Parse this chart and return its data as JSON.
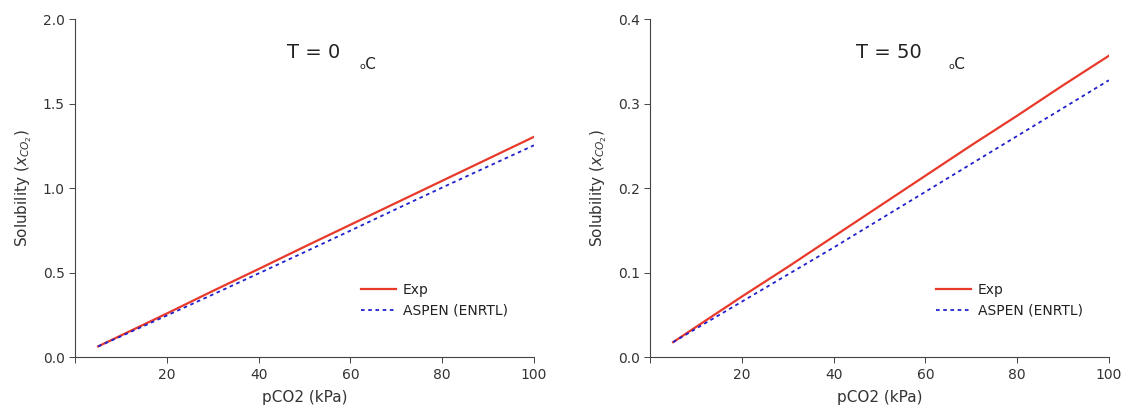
{
  "subplot1": {
    "title_main": "T = 0",
    "title_deg": "ₒC",
    "xlabel": "pCO2 (kPa)",
    "xlim": [
      0,
      100
    ],
    "ylim": [
      0.0,
      2.0
    ],
    "xticks": [
      0,
      20,
      40,
      60,
      80,
      100
    ],
    "yticks": [
      0.0,
      0.5,
      1.0,
      1.5,
      2.0
    ],
    "exp_x": [
      5,
      10,
      20,
      30,
      40,
      50,
      60,
      70,
      80,
      90,
      100
    ],
    "exp_y": [
      0.065,
      0.13,
      0.26,
      0.393,
      0.523,
      0.655,
      0.785,
      0.915,
      1.045,
      1.175,
      1.305
    ],
    "aspen_x": [
      5,
      10,
      20,
      30,
      40,
      50,
      60,
      70,
      80,
      90,
      100
    ],
    "aspen_y": [
      0.065,
      0.125,
      0.248,
      0.372,
      0.497,
      0.623,
      0.75,
      0.878,
      1.005,
      1.13,
      1.255
    ]
  },
  "subplot2": {
    "title_main": "T = 50",
    "title_deg": "ₒC",
    "xlabel": "pCO2 (kPa)",
    "xlim": [
      0,
      100
    ],
    "ylim": [
      0.0,
      0.4
    ],
    "xticks": [
      0,
      20,
      40,
      60,
      80,
      100
    ],
    "yticks": [
      0.0,
      0.1,
      0.2,
      0.3,
      0.4
    ],
    "exp_x": [
      5,
      10,
      20,
      30,
      40,
      50,
      60,
      70,
      80,
      90,
      100
    ],
    "exp_y": [
      0.018,
      0.036,
      0.072,
      0.107,
      0.143,
      0.179,
      0.215,
      0.251,
      0.286,
      0.322,
      0.357
    ],
    "aspen_x": [
      5,
      10,
      20,
      30,
      40,
      50,
      60,
      70,
      80,
      90,
      100
    ],
    "aspen_y": [
      0.018,
      0.034,
      0.066,
      0.098,
      0.13,
      0.163,
      0.196,
      0.229,
      0.262,
      0.295,
      0.328
    ]
  },
  "exp_color": "#e8392a",
  "aspen_color": "#2020cc",
  "exp_linewidth": 1.6,
  "aspen_linewidth": 1.3,
  "legend_exp": "Exp",
  "legend_aspen": "ASPEN (ENRTL)",
  "background_color": "#ffffff",
  "fontsize_title": 14,
  "fontsize_axis_label": 11,
  "fontsize_tick": 10,
  "fontsize_legend": 10
}
